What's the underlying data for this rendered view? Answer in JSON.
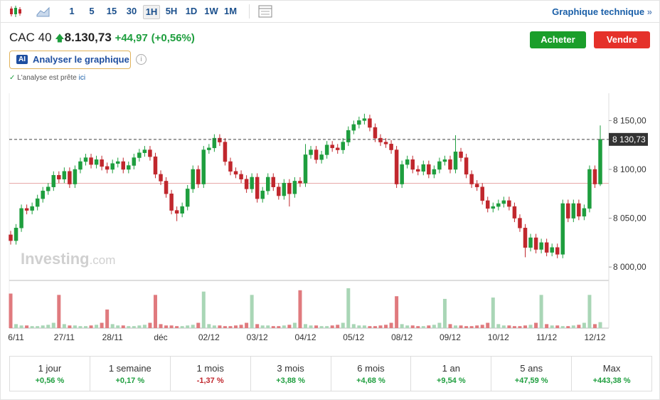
{
  "toolbar": {
    "intervals": [
      "1",
      "5",
      "15",
      "30",
      "1H",
      "5H",
      "1D",
      "1W",
      "1M"
    ],
    "selected": 4,
    "link": "Graphique technique",
    "link_arrow": "»"
  },
  "header": {
    "name": "CAC 40",
    "price": "8.130,73",
    "change": "+44,97",
    "change_pct": "(+0,56%)",
    "buy": "Acheter",
    "sell": "Vendre",
    "ai_badge": "AI",
    "analyze": "Analyser le graphique",
    "info": "i",
    "status": "L'analyse est prête",
    "status_link": "ici"
  },
  "chart_data": {
    "type": "candlestick",
    "watermark": "Investing",
    "watermark_suffix": ".com",
    "categories": [
      null,
      "6/11",
      null,
      null,
      null,
      null,
      null,
      null,
      null,
      null,
      "27/11",
      null,
      null,
      null,
      null,
      null,
      null,
      null,
      null,
      "28/11",
      null,
      null,
      null,
      null,
      null,
      null,
      null,
      null,
      "déc",
      null,
      null,
      null,
      null,
      null,
      null,
      null,
      null,
      "02/12",
      null,
      null,
      null,
      null,
      null,
      null,
      null,
      null,
      "03/12",
      null,
      null,
      null,
      null,
      null,
      null,
      null,
      null,
      "04/12",
      null,
      null,
      null,
      null,
      null,
      null,
      null,
      null,
      "05/12",
      null,
      null,
      null,
      null,
      null,
      null,
      null,
      null,
      "08/12",
      null,
      null,
      null,
      null,
      null,
      null,
      null,
      null,
      "09/12",
      null,
      null,
      null,
      null,
      null,
      null,
      null,
      null,
      "10/12",
      null,
      null,
      null,
      null,
      null,
      null,
      null,
      null,
      "11/12",
      null,
      null,
      null,
      null,
      null,
      null,
      null,
      null,
      "12/12",
      null
    ],
    "open": [
      8033,
      8027,
      8040,
      8060,
      8058,
      8062,
      8070,
      8078,
      8082,
      8094,
      8090,
      8098,
      8085,
      8100,
      8108,
      8112,
      8105,
      8110,
      8103,
      8100,
      8106,
      8108,
      8100,
      8104,
      8112,
      8117,
      8120,
      8113,
      8095,
      8088,
      8075,
      8058,
      8055,
      8062,
      8080,
      8100,
      8085,
      8120,
      8122,
      8132,
      8128,
      8108,
      8098,
      8095,
      8090,
      8080,
      8092,
      8070,
      8078,
      8092,
      8082,
      8073,
      8086,
      8075,
      8088,
      8086,
      8115,
      8120,
      8110,
      8115,
      8125,
      8122,
      8120,
      8128,
      8140,
      8146,
      8150,
      8152,
      8143,
      8132,
      8128,
      8126,
      8120,
      8085,
      8105,
      8110,
      8100,
      8098,
      8105,
      8095,
      8100,
      8108,
      8110,
      8100,
      8118,
      8112,
      8095,
      8085,
      8082,
      8068,
      8060,
      8062,
      8065,
      8068,
      8062,
      8050,
      8040,
      8020,
      8030,
      8018,
      8025,
      8015,
      8020,
      8013,
      8065,
      8050,
      8065,
      8052,
      8060,
      8100,
      8085
    ],
    "high": [
      8037,
      8044,
      8064,
      8064,
      8066,
      8074,
      8082,
      8086,
      8098,
      8098,
      8102,
      8102,
      8104,
      8112,
      8116,
      8116,
      8114,
      8114,
      8107,
      8110,
      8112,
      8112,
      8108,
      8116,
      8121,
      8124,
      8124,
      8117,
      8099,
      8092,
      8079,
      8062,
      8066,
      8084,
      8104,
      8104,
      8124,
      8126,
      8136,
      8136,
      8132,
      8112,
      8102,
      8099,
      8094,
      8096,
      8096,
      8082,
      8096,
      8096,
      8086,
      8090,
      8090,
      8092,
      8092,
      8126,
      8124,
      8124,
      8119,
      8129,
      8129,
      8126,
      8132,
      8144,
      8150,
      8154,
      8157,
      8156,
      8147,
      8136,
      8132,
      8130,
      8124,
      8109,
      8114,
      8114,
      8104,
      8109,
      8109,
      8104,
      8112,
      8114,
      8114,
      8135,
      8122,
      8116,
      8099,
      8089,
      8086,
      8072,
      8066,
      8069,
      8072,
      8072,
      8066,
      8054,
      8044,
      8034,
      8034,
      8029,
      8029,
      8024,
      8024,
      8069,
      8069,
      8069,
      8069,
      8064,
      8104,
      8104,
      8145
    ],
    "low": [
      8023,
      8023,
      8036,
      8054,
      8054,
      8058,
      8066,
      8074,
      8078,
      8086,
      8086,
      8081,
      8081,
      8096,
      8104,
      8101,
      8101,
      8099,
      8096,
      8096,
      8102,
      8096,
      8096,
      8100,
      8108,
      8113,
      8109,
      8091,
      8084,
      8071,
      8054,
      8047,
      8051,
      8058,
      8076,
      8081,
      8081,
      8116,
      8118,
      8124,
      8104,
      8094,
      8091,
      8086,
      8076,
      8076,
      8066,
      8066,
      8074,
      8078,
      8069,
      8069,
      8062,
      8071,
      8082,
      8082,
      8111,
      8106,
      8106,
      8111,
      8118,
      8116,
      8116,
      8124,
      8136,
      8142,
      8146,
      8139,
      8128,
      8124,
      8122,
      8116,
      8081,
      8081,
      8101,
      8096,
      8094,
      8094,
      8091,
      8091,
      8096,
      8104,
      8096,
      8096,
      8108,
      8091,
      8081,
      8078,
      8064,
      8056,
      8056,
      8058,
      8061,
      8058,
      8046,
      8036,
      8010,
      8016,
      8014,
      8014,
      8011,
      8011,
      8009,
      8009,
      8046,
      8046,
      8048,
      8048,
      8056,
      8081,
      8083
    ],
    "close": [
      8027,
      8040,
      8060,
      8058,
      8062,
      8070,
      8078,
      8082,
      8094,
      8090,
      8098,
      8085,
      8100,
      8108,
      8112,
      8105,
      8110,
      8103,
      8100,
      8106,
      8108,
      8100,
      8104,
      8112,
      8117,
      8120,
      8113,
      8095,
      8088,
      8075,
      8058,
      8055,
      8062,
      8080,
      8100,
      8085,
      8120,
      8122,
      8132,
      8128,
      8108,
      8098,
      8095,
      8090,
      8080,
      8092,
      8070,
      8078,
      8092,
      8082,
      8073,
      8086,
      8075,
      8088,
      8086,
      8115,
      8120,
      8110,
      8115,
      8125,
      8122,
      8120,
      8128,
      8140,
      8146,
      8150,
      8152,
      8143,
      8132,
      8128,
      8126,
      8120,
      8085,
      8105,
      8110,
      8100,
      8098,
      8105,
      8095,
      8100,
      8108,
      8110,
      8100,
      8118,
      8112,
      8095,
      8085,
      8082,
      8068,
      8060,
      8062,
      8065,
      8068,
      8062,
      8050,
      8040,
      8020,
      8030,
      8018,
      8025,
      8015,
      8020,
      8013,
      8065,
      8050,
      8065,
      8052,
      8060,
      8100,
      8085,
      8130.73
    ],
    "volume": [
      52,
      6,
      4,
      4,
      3,
      3,
      4,
      5,
      8,
      50,
      6,
      4,
      4,
      3,
      3,
      4,
      5,
      8,
      28,
      6,
      4,
      4,
      3,
      3,
      4,
      5,
      8,
      50,
      6,
      4,
      4,
      3,
      3,
      4,
      5,
      8,
      55,
      6,
      4,
      4,
      3,
      3,
      4,
      5,
      8,
      50,
      6,
      4,
      4,
      3,
      3,
      4,
      5,
      8,
      57,
      6,
      4,
      4,
      3,
      3,
      4,
      5,
      8,
      60,
      6,
      4,
      4,
      3,
      3,
      4,
      5,
      8,
      48,
      6,
      4,
      4,
      3,
      3,
      4,
      5,
      8,
      44,
      6,
      4,
      4,
      3,
      3,
      4,
      5,
      8,
      46,
      6,
      4,
      4,
      3,
      3,
      4,
      5,
      8,
      50,
      6,
      4,
      4,
      3,
      3,
      4,
      5,
      8,
      50,
      6,
      9
    ],
    "up_color": "#1e9e3e",
    "down_color": "#c0272d",
    "up_volume_color": "#a9d6b6",
    "down_volume_color": "#e07a7e",
    "ylim": [
      7987,
      8178
    ],
    "yticks": [
      {
        "value": 8000,
        "label": "8 000,00"
      },
      {
        "value": 8050,
        "label": "8 050,00"
      },
      {
        "value": 8100,
        "label": "8 100,00"
      },
      {
        "value": 8150,
        "label": "8 150,00"
      }
    ],
    "last_price": {
      "value": 8130.73,
      "label": "8 130,73"
    },
    "previous_close": 8085.76
  },
  "performance": [
    {
      "period": "1 jour",
      "change": "+0,56 %"
    },
    {
      "period": "1 semaine",
      "change": "+0,17 %"
    },
    {
      "period": "1 mois",
      "change": "-1,37 %"
    },
    {
      "period": "3 mois",
      "change": "+3,88 %"
    },
    {
      "period": "6 mois",
      "change": "+4,68 %"
    },
    {
      "period": "1 an",
      "change": "+9,54 %"
    },
    {
      "period": "5 ans",
      "change": "+47,59 %"
    },
    {
      "period": "Max",
      "change": "+443,38 %"
    }
  ]
}
